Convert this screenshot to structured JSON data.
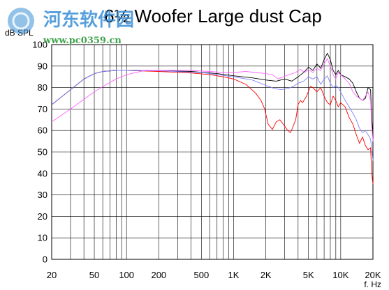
{
  "chart_data": {
    "type": "line",
    "title": "6½ Woofer Large dust Cap",
    "ylabel": "dB SPL",
    "xlabel": "f. Hz",
    "x_scale": "log",
    "xlim": [
      20,
      20000
    ],
    "ylim": [
      0,
      100
    ],
    "grid": true,
    "y_ticks": [
      0,
      10,
      20,
      30,
      40,
      50,
      60,
      70,
      80,
      90,
      100
    ],
    "x_tick_labels": [
      {
        "value": 20,
        "label": "20"
      },
      {
        "value": 50,
        "label": "50"
      },
      {
        "value": 100,
        "label": "100"
      },
      {
        "value": 200,
        "label": "200"
      },
      {
        "value": 500,
        "label": "500"
      },
      {
        "value": 1000,
        "label": "1K"
      },
      {
        "value": 2000,
        "label": "2K"
      },
      {
        "value": 5000,
        "label": "5K"
      },
      {
        "value": 10000,
        "label": "10K"
      },
      {
        "value": 20000,
        "label": "20K"
      }
    ],
    "series": [
      {
        "color": "#ff0000",
        "points": [
          [
            20,
            72
          ],
          [
            30,
            79
          ],
          [
            40,
            84
          ],
          [
            50,
            86.5
          ],
          [
            60,
            87.5
          ],
          [
            80,
            88
          ],
          [
            100,
            88
          ],
          [
            200,
            87.5
          ],
          [
            400,
            86.8
          ],
          [
            600,
            86
          ],
          [
            800,
            85
          ],
          [
            1000,
            84
          ],
          [
            1300,
            81.5
          ],
          [
            1600,
            77.5
          ],
          [
            1800,
            74
          ],
          [
            1950,
            70
          ],
          [
            2100,
            63
          ],
          [
            2300,
            60.5
          ],
          [
            2500,
            64
          ],
          [
            2700,
            65
          ],
          [
            3000,
            62
          ],
          [
            3200,
            60
          ],
          [
            3400,
            59
          ],
          [
            3600,
            62
          ],
          [
            3800,
            65
          ],
          [
            4000,
            72
          ],
          [
            4200,
            74
          ],
          [
            4400,
            73
          ],
          [
            4800,
            76
          ],
          [
            5200,
            80.5
          ],
          [
            5500,
            80
          ],
          [
            6000,
            78
          ],
          [
            6500,
            80
          ],
          [
            7000,
            76
          ],
          [
            7500,
            73
          ],
          [
            8000,
            72
          ],
          [
            8500,
            76
          ],
          [
            9000,
            74
          ],
          [
            9500,
            71
          ],
          [
            10000,
            73
          ],
          [
            11000,
            71
          ],
          [
            12000,
            66
          ],
          [
            13000,
            63
          ],
          [
            14000,
            58
          ],
          [
            15000,
            54
          ],
          [
            16000,
            57
          ],
          [
            17000,
            53
          ],
          [
            18000,
            51
          ],
          [
            19000,
            52
          ],
          [
            19500,
            40
          ],
          [
            20000,
            35
          ]
        ]
      },
      {
        "color": "#000000",
        "points": [
          [
            20,
            72
          ],
          [
            30,
            79
          ],
          [
            40,
            84
          ],
          [
            50,
            86.5
          ],
          [
            60,
            87.5
          ],
          [
            80,
            88
          ],
          [
            100,
            88
          ],
          [
            200,
            87.8
          ],
          [
            400,
            87.5
          ],
          [
            700,
            86.5
          ],
          [
            1000,
            85.5
          ],
          [
            1500,
            84.5
          ],
          [
            2000,
            83.5
          ],
          [
            2500,
            83
          ],
          [
            3000,
            84
          ],
          [
            3500,
            83
          ],
          [
            4000,
            85
          ],
          [
            4500,
            87
          ],
          [
            5000,
            89.5
          ],
          [
            5500,
            88
          ],
          [
            6000,
            91
          ],
          [
            6500,
            89
          ],
          [
            7000,
            93
          ],
          [
            7500,
            96
          ],
          [
            8000,
            93
          ],
          [
            8500,
            88
          ],
          [
            9000,
            86
          ],
          [
            9500,
            88
          ],
          [
            10000,
            86
          ],
          [
            11000,
            85
          ],
          [
            12000,
            84
          ],
          [
            13000,
            82
          ],
          [
            14000,
            78
          ],
          [
            15000,
            75
          ],
          [
            16000,
            74
          ],
          [
            17000,
            75
          ],
          [
            18000,
            80
          ],
          [
            19000,
            79
          ],
          [
            19500,
            66
          ],
          [
            20000,
            56
          ]
        ]
      },
      {
        "color": "#8080ff",
        "points": [
          [
            20,
            72
          ],
          [
            30,
            79
          ],
          [
            40,
            84
          ],
          [
            50,
            86.5
          ],
          [
            60,
            87.5
          ],
          [
            80,
            88
          ],
          [
            100,
            88
          ],
          [
            200,
            87.8
          ],
          [
            500,
            87
          ],
          [
            700,
            86
          ],
          [
            1000,
            85
          ],
          [
            1500,
            83.5
          ],
          [
            2000,
            81
          ],
          [
            2400,
            79.5
          ],
          [
            2800,
            79
          ],
          [
            3200,
            79.5
          ],
          [
            3600,
            80.5
          ],
          [
            4000,
            82
          ],
          [
            4500,
            83
          ],
          [
            5000,
            85
          ],
          [
            5500,
            84
          ],
          [
            6000,
            85
          ],
          [
            6500,
            81.5
          ],
          [
            7000,
            84
          ],
          [
            7500,
            85.5
          ],
          [
            8000,
            82
          ],
          [
            8500,
            80
          ],
          [
            9000,
            81
          ],
          [
            9500,
            80
          ],
          [
            10000,
            78
          ],
          [
            11000,
            74
          ],
          [
            12000,
            71
          ],
          [
            13000,
            68
          ],
          [
            14000,
            65
          ],
          [
            15000,
            61
          ],
          [
            16000,
            59
          ],
          [
            17000,
            60
          ],
          [
            18000,
            58
          ],
          [
            19000,
            56
          ],
          [
            20000,
            46
          ]
        ]
      },
      {
        "color": "#ff66ff",
        "points": [
          [
            20,
            64
          ],
          [
            30,
            70
          ],
          [
            40,
            74.5
          ],
          [
            50,
            78
          ],
          [
            60,
            80.5
          ],
          [
            80,
            84
          ],
          [
            100,
            86
          ],
          [
            150,
            88
          ],
          [
            200,
            88
          ],
          [
            400,
            88
          ],
          [
            600,
            87.5
          ],
          [
            800,
            87
          ],
          [
            1000,
            87
          ],
          [
            1300,
            87.5
          ],
          [
            1600,
            87
          ],
          [
            2000,
            86.5
          ],
          [
            2300,
            86
          ],
          [
            2600,
            84
          ],
          [
            2900,
            85
          ],
          [
            3300,
            86
          ],
          [
            3800,
            87
          ],
          [
            4200,
            88.5
          ],
          [
            4600,
            87
          ],
          [
            5000,
            88.5
          ],
          [
            5500,
            87
          ],
          [
            6000,
            89
          ],
          [
            6500,
            88
          ],
          [
            7000,
            91
          ],
          [
            7500,
            93.5
          ],
          [
            8000,
            90
          ],
          [
            8500,
            86
          ],
          [
            9000,
            84
          ],
          [
            9500,
            87
          ],
          [
            10000,
            86
          ],
          [
            11000,
            84
          ],
          [
            12000,
            82
          ],
          [
            13000,
            78
          ],
          [
            14000,
            76
          ],
          [
            15000,
            75
          ],
          [
            16000,
            74
          ],
          [
            17000,
            76
          ],
          [
            18000,
            78
          ],
          [
            19000,
            74
          ],
          [
            19500,
            62
          ],
          [
            20000,
            55
          ]
        ]
      }
    ]
  },
  "watermark": {
    "site_name": "河东软件园",
    "site_url": "www.pc0359.cn"
  }
}
